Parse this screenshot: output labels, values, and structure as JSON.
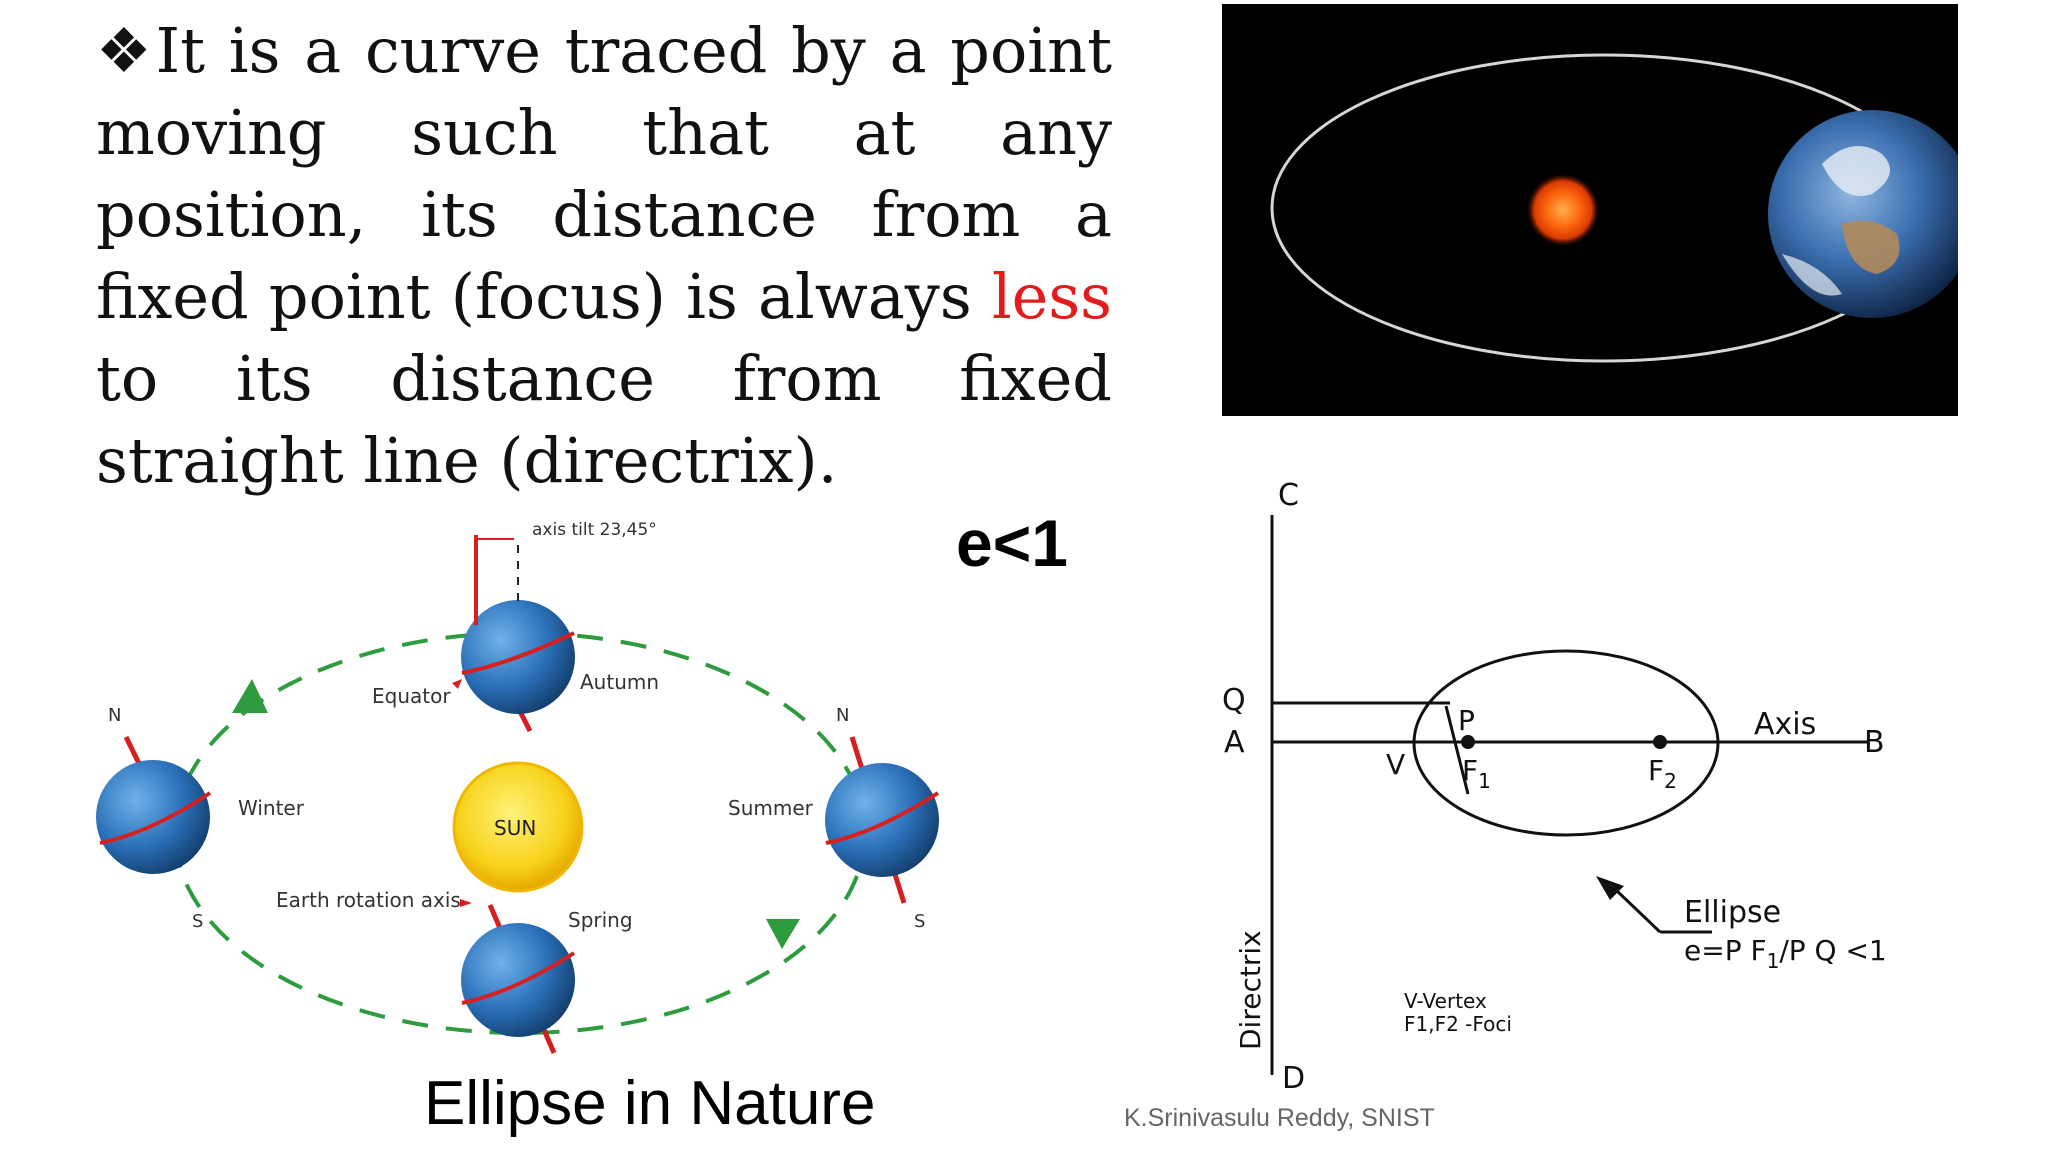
{
  "definition": {
    "bullet": "❖",
    "part1": "It is a curve traced by a point moving such that at any position, its distance from a fixed point (focus) is always ",
    "highlight": "less",
    "part2": " to its distance from fixed straight line (directrix)."
  },
  "eccentricity": "e<1",
  "caption": "Ellipse in Nature",
  "credit": "K.Srinivasulu Reddy, SNIST",
  "seasons_diagram": {
    "axis_tilt": "axis tilt 23,45°",
    "equator": "Equator",
    "autumn": "Autumn",
    "winter": "Winter",
    "summer": "Summer",
    "spring": "Spring",
    "sun": "SUN",
    "rotation_axis": "Earth rotation axis",
    "north_left": "N",
    "south_left": "S",
    "north_right": "N",
    "south_right": "S"
  },
  "geometry_diagram": {
    "c": "C",
    "d": "D",
    "q": "Q",
    "a": "A",
    "p": "P",
    "v": "V",
    "f1": "F",
    "f1_sub": "1",
    "f2": "F",
    "f2_sub": "2",
    "axis": "Axis",
    "b": "B",
    "ellipse_label": "Ellipse",
    "ratio_prefix": "e=P F",
    "ratio_sub": "1",
    "ratio_suffix": "/P Q <1",
    "directrix": "Directrix",
    "vertex_legend": "V-Vertex",
    "foci_legend": "F1,F2 -Foci"
  },
  "colors": {
    "highlight": "#e31b1b",
    "orbit_dash": "#2e9b3f",
    "earth_blue": "#2a6fb8",
    "sun_yellow": "#f7d21a",
    "axis_red": "#d62020"
  }
}
